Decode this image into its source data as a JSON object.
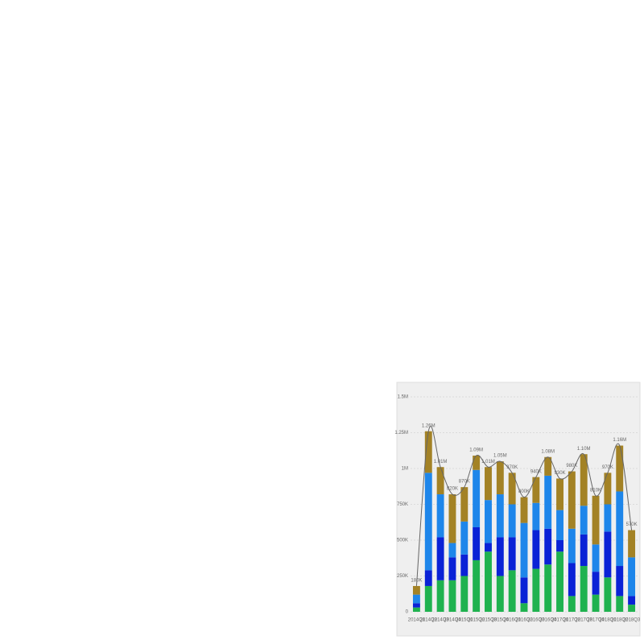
{
  "chart_data": {
    "type": "bar",
    "stacked": true,
    "categories": [
      "2014Q1",
      "2014Q2",
      "2014Q3",
      "2014Q4",
      "2015Q1",
      "2015Q2",
      "2015Q3",
      "2015Q4",
      "2016Q1",
      "2016Q2",
      "2016Q3",
      "2016Q4",
      "2017Q1",
      "2017Q2",
      "2017Q3",
      "2017Q4",
      "2018Q1",
      "2018Q2",
      "2018Q3"
    ],
    "series": [
      {
        "color": "#1fb24f",
        "values": [
          30000,
          180000,
          220000,
          220000,
          250000,
          360000,
          420000,
          250000,
          290000,
          60000,
          300000,
          330000,
          420000,
          110000,
          320000,
          120000,
          240000,
          110000,
          50000
        ]
      },
      {
        "color": "#0a22d6",
        "values": [
          30000,
          110000,
          300000,
          160000,
          150000,
          230000,
          60000,
          270000,
          230000,
          180000,
          270000,
          250000,
          80000,
          230000,
          220000,
          160000,
          320000,
          210000,
          60000
        ]
      },
      {
        "color": "#1e86ea",
        "values": [
          60000,
          680000,
          300000,
          100000,
          230000,
          400000,
          300000,
          300000,
          230000,
          380000,
          190000,
          370000,
          210000,
          240000,
          200000,
          190000,
          190000,
          520000,
          270000
        ]
      },
      {
        "color": "#a38225",
        "values": [
          60000,
          290000,
          190000,
          340000,
          240000,
          100000,
          230000,
          230000,
          220000,
          180000,
          180000,
          130000,
          220000,
          400000,
          360000,
          340000,
          220000,
          320000,
          190000
        ]
      },
      {
        "type": "line",
        "color": "#666666",
        "values": [
          180000,
          1260000,
          1010000,
          820000,
          870000,
          1090000,
          1010000,
          1050000,
          970000,
          800000,
          940000,
          1080000,
          930000,
          980000,
          1100000,
          810000,
          970000,
          1160000,
          570000
        ],
        "value_labels": [
          "180K",
          "1.26M",
          "1.01M",
          "820K",
          "870K",
          "1.09M",
          "1.01M",
          "1.05M",
          "970K",
          "800K",
          "940K",
          "1.08M",
          "930K",
          "980K",
          "1.10M",
          "810K",
          "970K",
          "1.16M",
          "570K"
        ]
      }
    ],
    "ylim": [
      0,
      1500000
    ],
    "yticks": [
      0,
      {
        "value": 250000,
        "label": "250K"
      },
      {
        "value": 500000,
        "label": "500K"
      },
      {
        "value": 750000,
        "label": "750K"
      },
      {
        "value": 1000000,
        "label": "1M"
      },
      {
        "value": 1250000,
        "label": "1.25M"
      },
      {
        "value": 1500000,
        "label": "1.5M"
      }
    ],
    "grid": true
  }
}
